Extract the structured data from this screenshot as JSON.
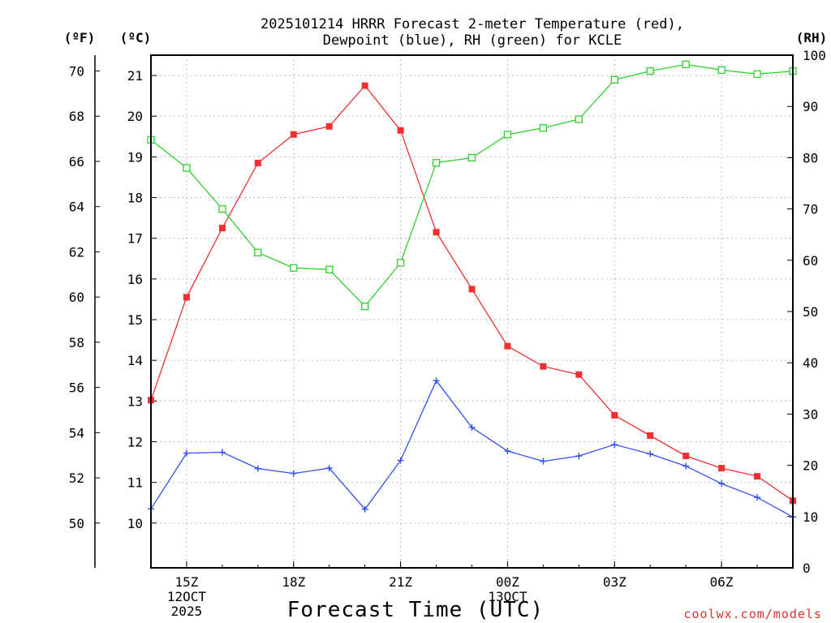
{
  "chart_data": {
    "type": "line",
    "title_line1": "2025101214 HRRR Forecast 2-meter Temperature (red),",
    "title_line2": "Dewpoint (blue), RH (green) for KCLE",
    "unit_labels": {
      "fahrenheit": "(ºF)",
      "celsius": "(ºC)",
      "rh": "(RH)"
    },
    "xlabel": "Forecast Time (UTC)",
    "credit": "coolwx.com/models",
    "x_hours": [
      14,
      15,
      16,
      17,
      18,
      19,
      20,
      21,
      22,
      23,
      24,
      25,
      26,
      27,
      28,
      29,
      30,
      31,
      32
    ],
    "x_ticks": [
      {
        "hour": 15,
        "label": "15Z",
        "sub1": "12OCT",
        "sub2": "2025"
      },
      {
        "hour": 18,
        "label": "18Z",
        "sub1": "",
        "sub2": ""
      },
      {
        "hour": 21,
        "label": "21Z",
        "sub1": "",
        "sub2": ""
      },
      {
        "hour": 24,
        "label": "00Z",
        "sub1": "13OCT",
        "sub2": ""
      },
      {
        "hour": 27,
        "label": "03Z",
        "sub1": "",
        "sub2": ""
      },
      {
        "hour": 30,
        "label": "06Z",
        "sub1": "",
        "sub2": ""
      }
    ],
    "celsius_axis": {
      "range": [
        8.9,
        21.5
      ],
      "ticks": [
        10,
        11,
        12,
        13,
        14,
        15,
        16,
        17,
        18,
        19,
        20,
        21
      ]
    },
    "fahrenheit_axis": {
      "ticks": [
        50,
        52,
        54,
        56,
        58,
        60,
        62,
        64,
        66,
        68,
        70
      ]
    },
    "rh_axis": {
      "range": [
        0,
        100
      ],
      "ticks": [
        0,
        10,
        20,
        30,
        40,
        50,
        60,
        70,
        80,
        90,
        100
      ]
    },
    "series": [
      {
        "name": "2-meter Temperature",
        "unit": "C",
        "color": "#f03030",
        "marker": "filled-square",
        "values": [
          13.02,
          15.55,
          17.25,
          18.85,
          19.55,
          19.75,
          20.75,
          19.65,
          17.15,
          15.75,
          14.35,
          13.85,
          13.65,
          12.65,
          12.15,
          11.65,
          11.35,
          11.15,
          10.55
        ]
      },
      {
        "name": "Dewpoint",
        "unit": "C",
        "color": "#3050f0",
        "marker": "plus",
        "values": [
          10.35,
          11.72,
          11.74,
          11.34,
          11.22,
          11.35,
          10.34,
          11.54,
          13.5,
          12.35,
          11.77,
          11.52,
          11.65,
          11.93,
          11.7,
          11.4,
          10.97,
          10.63,
          10.15
        ]
      },
      {
        "name": "Relative Humidity",
        "unit": "%",
        "color": "#30d030",
        "marker": "open-square",
        "values": [
          83.5,
          78,
          70,
          61.5,
          58.5,
          58.2,
          51,
          59.5,
          79,
          80,
          84.5,
          85.8,
          87.5,
          95.2,
          96.9,
          98.2,
          97.1,
          96.3,
          96.9
        ]
      }
    ]
  }
}
